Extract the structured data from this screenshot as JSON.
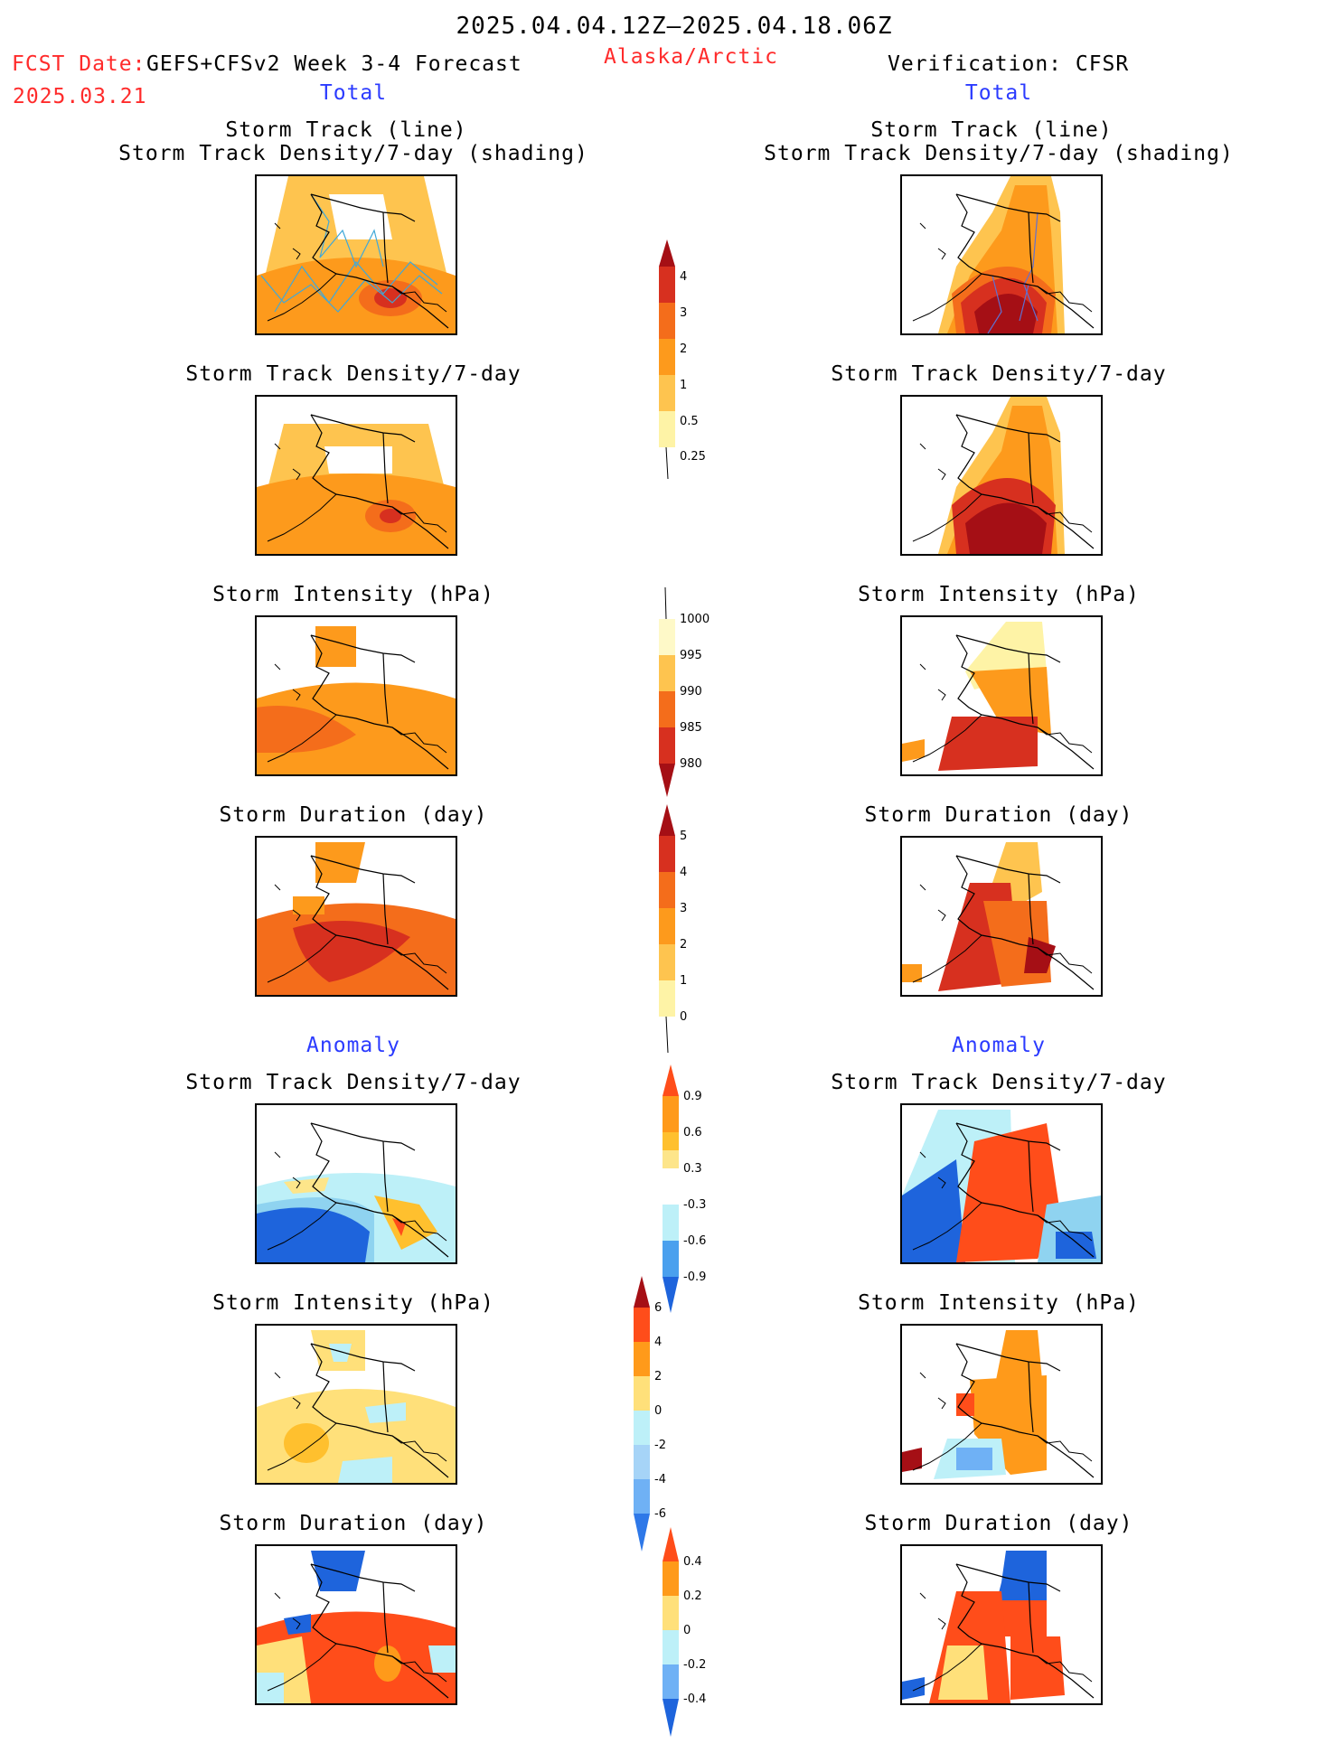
{
  "header": {
    "date_range": "2025.04.04.12Z–2025.04.18.06Z",
    "fcst_label": "FCST Date:",
    "fcst_date": "2025.03.21",
    "model": "GEFS+CFSv2 Week 3-4 Forecast",
    "region": "Alaska/Arctic",
    "verification": "Verification: CFSR"
  },
  "sections": {
    "total_left": "Total",
    "total_right": "Total",
    "anomaly_left": "Anomaly",
    "anomaly_right": "Anomaly"
  },
  "titles": {
    "track_line": "Storm Track (line)",
    "track_shading": "Storm Track Density/7-day (shading)",
    "density": "Storm Track Density/7-day",
    "intensity": "Storm Intensity (hPa)",
    "duration": "Storm Duration (day)"
  },
  "colorbars": {
    "density_total": {
      "labels": [
        "4",
        "3",
        "2",
        "1",
        "0.5",
        "0.25"
      ],
      "colors": [
        "#a50f15",
        "#d7301f",
        "#f46d1b",
        "#fd9a1c",
        "#fec44f",
        "#fef3a6"
      ]
    },
    "intensity_total": {
      "labels": [
        "1000",
        "995",
        "990",
        "985",
        "980"
      ],
      "colors": [
        "#fef9c8",
        "#fec44f",
        "#fd9a1c",
        "#f46d1b",
        "#d7301f",
        "#a50f15"
      ]
    },
    "duration_total": {
      "labels": [
        "5",
        "4",
        "3",
        "2",
        "1",
        "0"
      ],
      "colors": [
        "#a50f15",
        "#d7301f",
        "#f46d1b",
        "#fd9a1c",
        "#fec44f",
        "#fef3a6",
        "#ffffff"
      ]
    },
    "density_anom": {
      "labels": [
        "0.9",
        "0.6",
        "0.3",
        "-0.3",
        "-0.6",
        "-0.9"
      ],
      "colors": [
        "#ff4d1a",
        "#ff9a1a",
        "#ffc02e",
        "#fde58a",
        "#ffffff",
        "#bdf0f8",
        "#8fd3f0",
        "#4aa0ee",
        "#1e64dc"
      ]
    },
    "intensity_anom": {
      "labels": [
        "6",
        "4",
        "2",
        "0",
        "-2",
        "-4",
        "-6"
      ],
      "colors": [
        "#a50f15",
        "#ff4d1a",
        "#ff9a1a",
        "#ffe07a",
        "#bdf0f8",
        "#a6d4f7",
        "#6fb1f5",
        "#2e78e8"
      ]
    },
    "duration_anom": {
      "labels": [
        "0.4",
        "0.2",
        "0",
        "-0.2",
        "-0.4"
      ],
      "colors": [
        "#ff4d1a",
        "#ff9a1a",
        "#ffe07a",
        "#bdf0f8",
        "#6fb1f5",
        "#1e64dc"
      ]
    }
  }
}
